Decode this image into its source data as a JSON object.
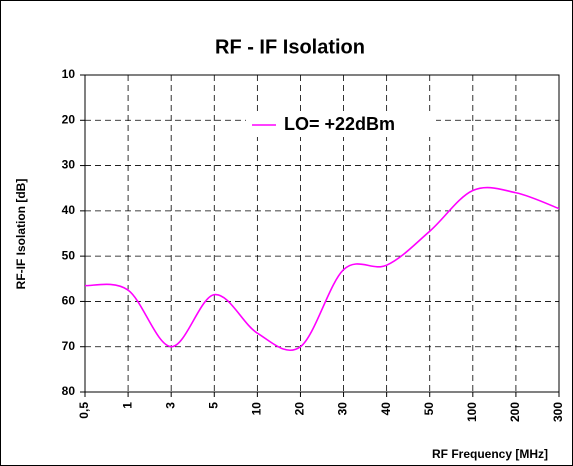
{
  "chart_data": {
    "type": "line",
    "title": "RF - IF Isolation",
    "xlabel": "RF Frequency [MHz]",
    "ylabel": "RF-IF Isolation [dB]",
    "categories": [
      "0,5",
      "1",
      "3",
      "5",
      "10",
      "20",
      "30",
      "40",
      "50",
      "100",
      "200",
      "300"
    ],
    "series": [
      {
        "name": "LO= +22dBm",
        "color": "#ff00ff",
        "values": [
          56.5,
          57.5,
          70,
          58.5,
          67,
          70,
          53,
          52,
          44.5,
          35.5,
          36,
          39.5
        ]
      }
    ],
    "ylim": [
      80,
      10
    ],
    "yticks": [
      10,
      20,
      30,
      40,
      50,
      60,
      70,
      80
    ],
    "grid": true,
    "legend": "upper center"
  }
}
